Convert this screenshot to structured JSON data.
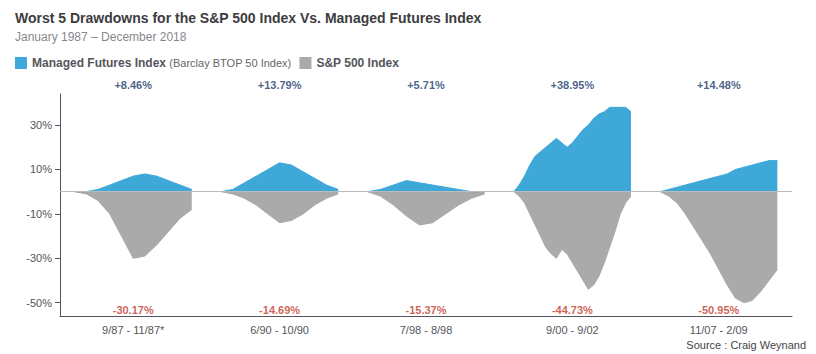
{
  "chart_data": {
    "type": "area",
    "title": "Worst 5 Drawdowns for the S&P 500 Index Vs. Managed Futures Index",
    "subtitle": "January 1987 – December 2018",
    "source": "Source : Craig Weynand",
    "categories": [
      "9/87 - 11/87*",
      "6/90 - 10/90",
      "7/98 - 8/98",
      "9/00 - 9/02",
      "11/07 - 2/09"
    ],
    "series": [
      {
        "name": "S&P 500 Index",
        "color": "#aaaaaa",
        "values": [
          [
            0,
            -1,
            -4,
            -10,
            -20,
            -30,
            -29,
            -24,
            -18,
            -12,
            -8
          ],
          [
            0,
            -1,
            -3,
            -6,
            -10,
            -14,
            -13,
            -10,
            -6,
            -3,
            -1
          ],
          [
            0,
            -2,
            -6,
            -11,
            -15,
            -14,
            -10,
            -6,
            -3,
            -1
          ],
          [
            0,
            -2,
            -5,
            -10,
            -15,
            -20,
            -25,
            -28,
            -30,
            -26,
            -28,
            -32,
            -36,
            -40,
            -44,
            -42,
            -38,
            -32,
            -25,
            -18,
            -10,
            -5,
            -2
          ],
          [
            0,
            -2,
            -5,
            -10,
            -16,
            -22,
            -28,
            -35,
            -42,
            -48,
            -50,
            -49,
            -45,
            -40,
            -35
          ]
        ]
      },
      {
        "name": "Managed Futures Index",
        "subtitle": "(Barclay BTOP 50 Index)",
        "color": "#3ea8d8",
        "values": [
          [
            0,
            0,
            1,
            3,
            5,
            7,
            8,
            7,
            5,
            3,
            1
          ],
          [
            0,
            1,
            4,
            7,
            10,
            13,
            12,
            9,
            6,
            3,
            1
          ],
          [
            0,
            1,
            3,
            5,
            4,
            3,
            2,
            1,
            0,
            0
          ],
          [
            0,
            3,
            7,
            12,
            16,
            18,
            20,
            22,
            24,
            22,
            20,
            22,
            25,
            28,
            30,
            33,
            35,
            36,
            38,
            38,
            38,
            38,
            36
          ],
          [
            0,
            1,
            2,
            3,
            4,
            5,
            6,
            7,
            8,
            10,
            11,
            12,
            13,
            14,
            14
          ]
        ]
      }
    ],
    "annotations": [
      {
        "series": "Managed Futures Index",
        "color": "#1a3a6b",
        "texts": [
          "+8.46%",
          "+13.79%",
          "+5.71%",
          "+38.95%",
          "+14.48%"
        ]
      },
      {
        "series": "S&P 500 Index",
        "color": "#c0392b",
        "texts": [
          "-30.17%",
          "-14.69%",
          "-15.37%",
          "-44.73%",
          "-50.95%"
        ]
      }
    ],
    "ylim": [
      -56,
      44
    ],
    "yticks": [
      {
        "value": -50,
        "label": "-50%"
      },
      {
        "value": -30,
        "label": "-30%"
      },
      {
        "value": -10,
        "label": "-10%"
      },
      {
        "value": 10,
        "label": "10%"
      },
      {
        "value": 30,
        "label": "30%"
      }
    ],
    "grid": false,
    "legend": "top-left"
  }
}
